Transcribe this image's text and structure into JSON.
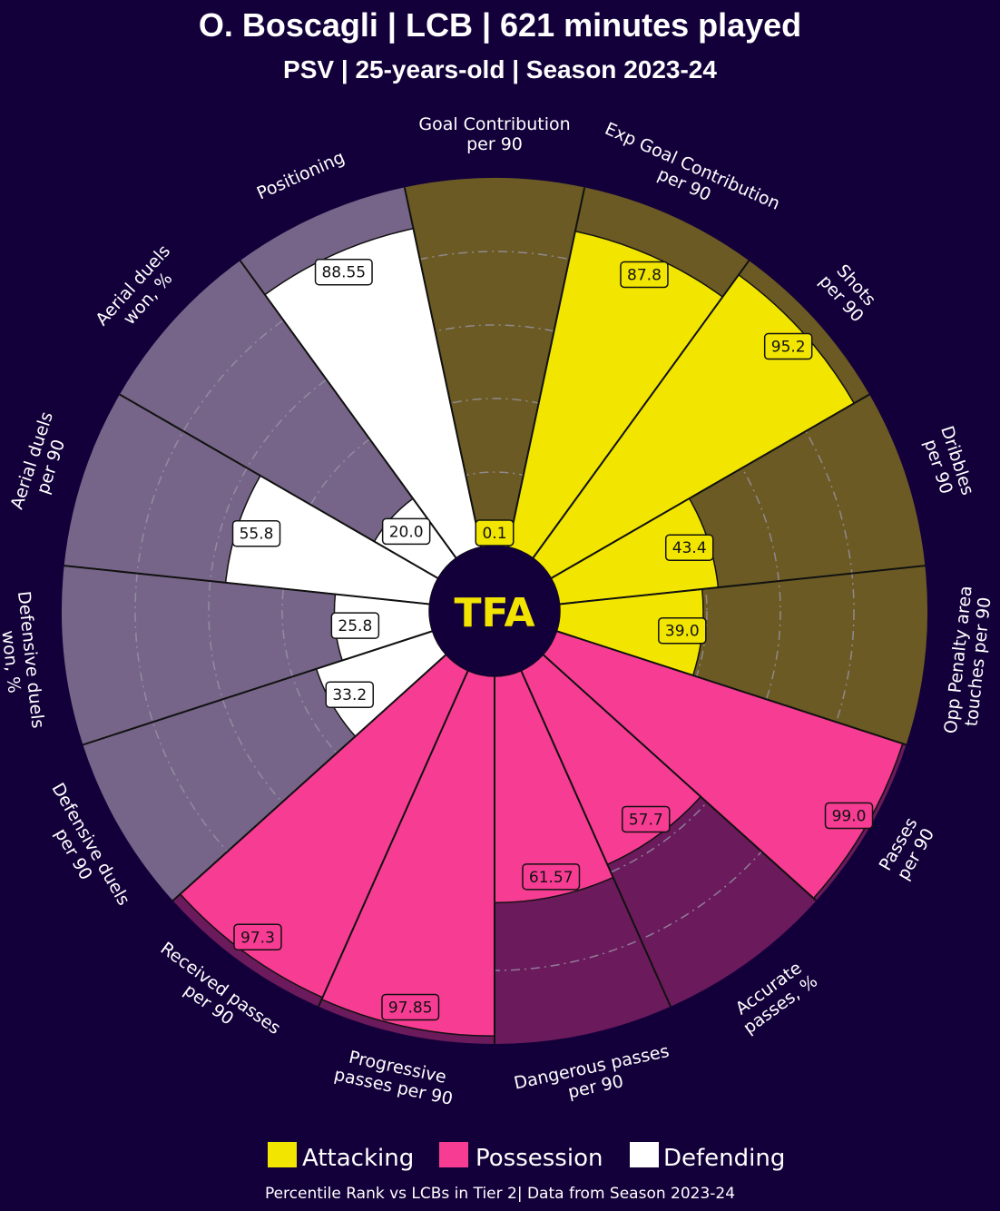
{
  "header": {
    "title": "O. Boscagli | LCB | 621 minutes played",
    "subtitle": "PSV | 25-years-old | Season 2023-24"
  },
  "logo": {
    "text": "TFA"
  },
  "legend": [
    {
      "label": "Attacking",
      "color": "#f2e600"
    },
    {
      "label": "Possession",
      "color": "#f73c93"
    },
    {
      "label": "Defending",
      "color": "#ffffff"
    }
  ],
  "footer": {
    "note": "Percentile Rank vs LCBs in Tier 2| Data from Season 2023-24"
  },
  "chart_data": {
    "type": "pizza",
    "title": "O. Boscagli | LCB | 621 minutes played",
    "subtitle": "PSV | 25-years-old | Season 2023-24",
    "range": [
      0,
      100
    ],
    "gridlines": [
      20,
      40,
      60,
      80
    ],
    "groups": {
      "Attacking": {
        "fill": "#f2e600",
        "background": "#6b5a24"
      },
      "Possession": {
        "fill": "#f73c93",
        "background": "#6b1a5c"
      },
      "Defending": {
        "fill": "#ffffff",
        "background": "#766588"
      }
    },
    "slices": [
      {
        "label": "Goal Contribution\nper 90",
        "value": 0.1,
        "display": "0.1",
        "group": "Attacking"
      },
      {
        "label": "Exp Goal Contribution\nper 90",
        "value": 87.8,
        "display": "87.8",
        "group": "Attacking"
      },
      {
        "label": "Shots\nper 90",
        "value": 95.2,
        "display": "95.2",
        "group": "Attacking"
      },
      {
        "label": "Dribbles\nper 90",
        "value": 43.4,
        "display": "43.4",
        "group": "Attacking"
      },
      {
        "label": "Opp Penalty area\ntouches per 90",
        "value": 39.0,
        "display": "39.0",
        "group": "Attacking"
      },
      {
        "label": "Passes\nper 90",
        "value": 99.0,
        "display": "99.0",
        "group": "Possession"
      },
      {
        "label": "Accurate\npasses, %",
        "value": 57.7,
        "display": "57.7",
        "group": "Possession"
      },
      {
        "label": "Dangerous passes\nper 90",
        "value": 61.57,
        "display": "61.57",
        "group": "Possession"
      },
      {
        "label": "Progressive\npasses per 90",
        "value": 97.85,
        "display": "97.85",
        "group": "Possession"
      },
      {
        "label": "Received passes\nper 90",
        "value": 97.3,
        "display": "97.3",
        "group": "Possession"
      },
      {
        "label": "Defensive duels\nper 90",
        "value": 33.2,
        "display": "33.2",
        "group": "Defending"
      },
      {
        "label": "Defensive duels\nwon, %",
        "value": 25.8,
        "display": "25.8",
        "group": "Defending"
      },
      {
        "label": "Aerial duels\nper 90",
        "value": 55.8,
        "display": "55.8",
        "group": "Defending"
      },
      {
        "label": "Aerial duels\nwon, %",
        "value": 20.0,
        "display": "20.0",
        "group": "Defending"
      },
      {
        "label": "Positioning",
        "value": 88.55,
        "display": "88.55",
        "group": "Defending"
      }
    ]
  }
}
